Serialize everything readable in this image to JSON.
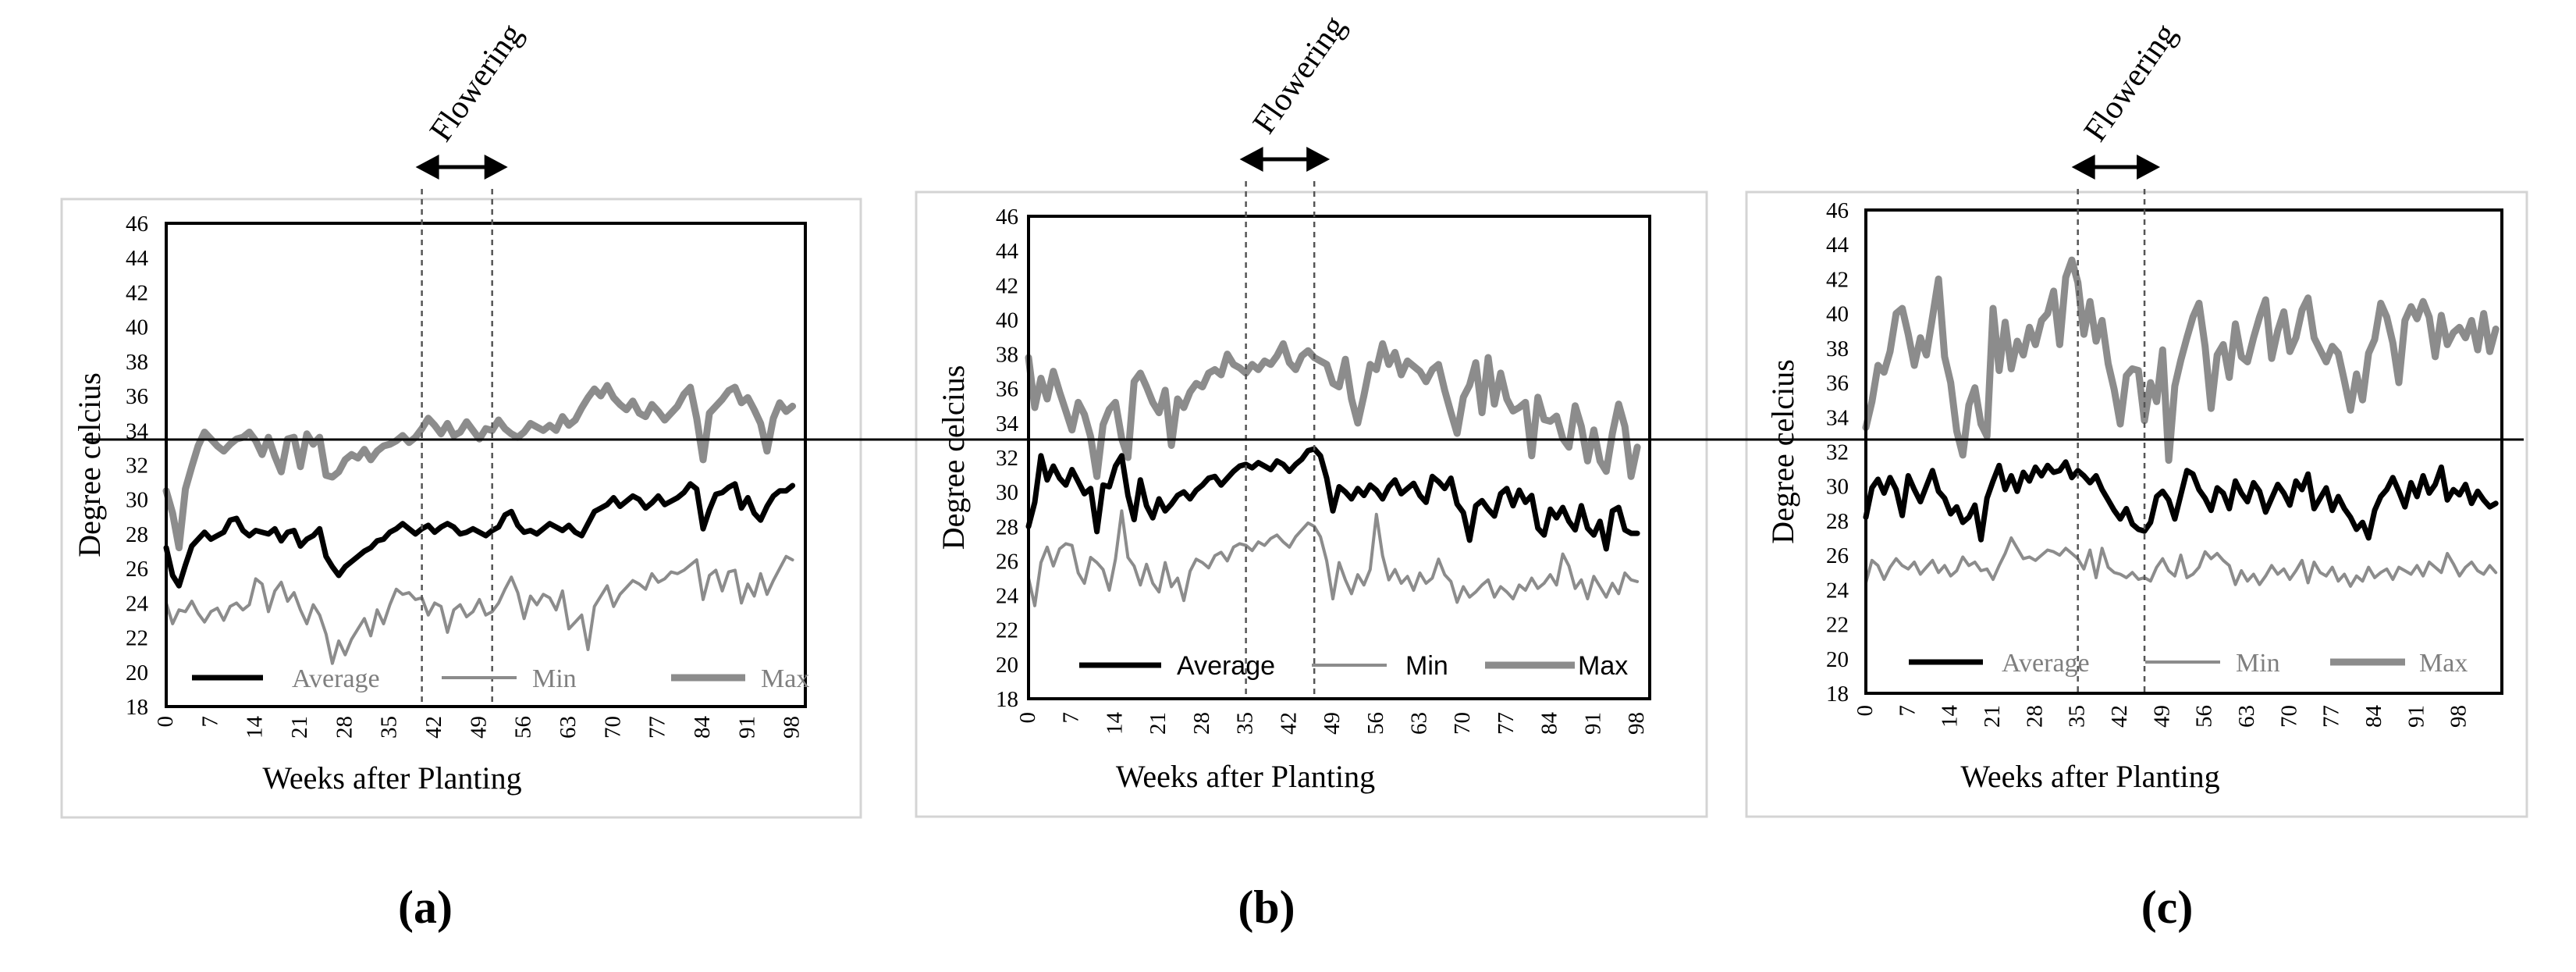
{
  "colors": {
    "average": "#000000",
    "min": "#8c8c8c",
    "max": "#8c8c8c",
    "legend_serif": "#7f7f7f"
  },
  "chart_data": [
    {
      "type": "line",
      "panel_label": "(a)",
      "xlabel": "Weeks after Planting",
      "ylabel": "Degree celcius",
      "ylim": [
        18,
        46
      ],
      "yticks": [
        "18",
        "20",
        "22",
        "24",
        "26",
        "28",
        "30",
        "32",
        "34",
        "36",
        "38",
        "40",
        "42",
        "44",
        "46"
      ],
      "xlim": [
        0,
        100
      ],
      "xticks": [
        "0",
        "7",
        "14",
        "21",
        "28",
        "35",
        "42",
        "49",
        "56",
        "63",
        "70",
        "77",
        "84",
        "91",
        "98"
      ],
      "legend_position": "bottom-inside",
      "legend_font": "serif",
      "flowering": {
        "label": "Flowering",
        "start_week": 40,
        "end_week": 51
      },
      "series": [
        {
          "name": "Average",
          "values": [
            27.2,
            25.6,
            25.0,
            26.2,
            27.3,
            27.7,
            28.1,
            27.7,
            27.9,
            28.1,
            28.8,
            28.9,
            28.2,
            27.9,
            28.2,
            28.1,
            28.0,
            28.3,
            27.6,
            28.1,
            28.2,
            27.3,
            27.7,
            27.9,
            28.3,
            26.7,
            26.1,
            25.6,
            26.1,
            26.4,
            26.7,
            27.0,
            27.2,
            27.6,
            27.7,
            28.1,
            28.3,
            28.6,
            28.3,
            28.0,
            28.3,
            28.5,
            28.1,
            28.4,
            28.6,
            28.4,
            28.0,
            28.1,
            28.3,
            28.1,
            27.9,
            28.2,
            28.4,
            29.1,
            29.3,
            28.5,
            28.1,
            28.2,
            28.0,
            28.3,
            28.6,
            28.4,
            28.2,
            28.5,
            28.1,
            27.9,
            28.6,
            29.3,
            29.5,
            29.7,
            30.1,
            29.6,
            29.9,
            30.2,
            30.0,
            29.5,
            29.8,
            30.2,
            29.7,
            29.9,
            30.1,
            30.4,
            30.9,
            30.6,
            28.3,
            29.4,
            30.3,
            30.4,
            30.7,
            30.9,
            29.5,
            30.1,
            29.2,
            28.8,
            29.6,
            30.2,
            30.5,
            30.5,
            30.8
          ]
        },
        {
          "name": "Min",
          "values": [
            24.0,
            22.8,
            23.6,
            23.5,
            24.1,
            23.4,
            22.9,
            23.5,
            23.7,
            23.0,
            23.8,
            24.0,
            23.6,
            23.9,
            25.4,
            25.1,
            23.5,
            24.7,
            25.2,
            24.1,
            24.6,
            23.6,
            22.8,
            23.9,
            23.3,
            22.2,
            20.5,
            21.8,
            21.0,
            21.9,
            22.5,
            23.1,
            22.1,
            23.6,
            22.8,
            23.9,
            24.8,
            24.5,
            24.6,
            24.2,
            24.3,
            23.3,
            24.0,
            23.8,
            22.3,
            23.6,
            23.9,
            23.2,
            23.5,
            24.2,
            23.3,
            23.5,
            24.0,
            24.8,
            25.5,
            24.6,
            23.1,
            24.4,
            23.9,
            24.5,
            24.3,
            23.6,
            24.7,
            22.5,
            22.9,
            23.3,
            21.3,
            23.8,
            24.4,
            25.0,
            23.8,
            24.5,
            24.9,
            25.3,
            25.1,
            24.8,
            25.7,
            25.2,
            25.4,
            25.8,
            25.7,
            25.9,
            26.2,
            26.5,
            24.2,
            25.6,
            25.9,
            24.7,
            25.8,
            25.9,
            24.0,
            25.1,
            24.4,
            25.7,
            24.5,
            25.3,
            26.0,
            26.7,
            26.5
          ]
        },
        {
          "name": "Max",
          "values": [
            30.5,
            29.2,
            27.2,
            30.6,
            31.9,
            33.1,
            33.9,
            33.5,
            33.1,
            32.8,
            33.2,
            33.5,
            33.6,
            33.9,
            33.4,
            32.6,
            33.6,
            32.5,
            31.6,
            33.5,
            33.6,
            31.9,
            33.8,
            33.2,
            33.6,
            31.4,
            31.3,
            31.6,
            32.3,
            32.6,
            32.4,
            32.9,
            32.3,
            32.8,
            33.1,
            33.2,
            33.4,
            33.7,
            33.3,
            33.6,
            34.1,
            34.7,
            34.3,
            33.8,
            34.4,
            33.7,
            33.9,
            34.5,
            34.0,
            33.5,
            34.1,
            34.0,
            34.6,
            34.1,
            33.8,
            33.6,
            33.9,
            34.4,
            34.2,
            34.0,
            34.3,
            34.0,
            34.8,
            34.3,
            34.6,
            35.3,
            35.9,
            36.4,
            36.0,
            36.6,
            35.9,
            35.5,
            35.2,
            35.7,
            35.0,
            34.8,
            35.5,
            35.1,
            34.6,
            35.0,
            35.4,
            36.1,
            36.5,
            34.7,
            32.3,
            35.0,
            35.4,
            35.8,
            36.3,
            36.5,
            35.6,
            35.9,
            35.2,
            34.4,
            32.8,
            34.7,
            35.6,
            35.1,
            35.4
          ]
        }
      ]
    },
    {
      "type": "line",
      "panel_label": "(b)",
      "xlabel": "Weeks after Planting",
      "ylabel": "Degree celcius",
      "ylim": [
        18,
        46
      ],
      "yticks": [
        "18",
        "20",
        "22",
        "24",
        "26",
        "28",
        "30",
        "32",
        "34",
        "36",
        "38",
        "40",
        "42",
        "44",
        "46"
      ],
      "xlim": [
        0,
        100
      ],
      "xticks": [
        "0",
        "7",
        "14",
        "21",
        "28",
        "35",
        "42",
        "49",
        "56",
        "63",
        "70",
        "77",
        "84",
        "91",
        "98"
      ],
      "legend_position": "bottom-inside",
      "legend_font": "sans",
      "flowering": {
        "label": "Flowering",
        "start_week": 35,
        "end_week": 46
      },
      "series": [
        {
          "name": "Average",
          "values": [
            28.0,
            29.4,
            32.1,
            30.7,
            31.5,
            30.8,
            30.4,
            31.3,
            30.6,
            29.9,
            30.2,
            27.7,
            30.4,
            30.3,
            31.5,
            32.1,
            29.8,
            28.4,
            30.7,
            29.2,
            28.5,
            29.6,
            28.9,
            29.3,
            29.8,
            30.0,
            29.6,
            30.1,
            30.4,
            30.8,
            30.9,
            30.4,
            30.8,
            31.2,
            31.5,
            31.6,
            31.4,
            31.7,
            31.5,
            31.3,
            31.8,
            31.6,
            31.2,
            31.6,
            31.9,
            32.4,
            32.5,
            32.1,
            30.8,
            28.9,
            30.3,
            30.0,
            29.6,
            30.2,
            29.8,
            30.4,
            30.1,
            29.6,
            30.3,
            30.7,
            29.9,
            30.2,
            30.5,
            29.8,
            29.4,
            30.9,
            30.6,
            30.2,
            30.8,
            29.3,
            28.8,
            27.2,
            29.2,
            29.5,
            29.0,
            28.6,
            29.9,
            30.2,
            29.2,
            30.1,
            29.4,
            29.8,
            27.9,
            27.5,
            29.0,
            28.5,
            29.1,
            28.3,
            27.8,
            29.2,
            27.9,
            27.5,
            28.3,
            26.7,
            28.9,
            29.1,
            27.8,
            27.6,
            27.6
          ]
        },
        {
          "name": "Min",
          "values": [
            25.0,
            23.4,
            25.9,
            26.8,
            25.7,
            26.7,
            27.0,
            26.9,
            25.3,
            24.7,
            26.2,
            25.9,
            25.5,
            24.3,
            26.1,
            28.9,
            26.2,
            25.7,
            24.6,
            25.8,
            24.7,
            24.2,
            25.9,
            24.5,
            25.0,
            23.7,
            25.4,
            26.1,
            25.9,
            25.6,
            26.3,
            26.5,
            26.0,
            26.8,
            27.0,
            26.9,
            26.6,
            27.1,
            26.9,
            27.3,
            27.5,
            27.1,
            26.8,
            27.4,
            27.8,
            28.2,
            28.0,
            27.4,
            26.0,
            23.8,
            25.9,
            24.9,
            24.1,
            25.2,
            24.6,
            25.5,
            28.7,
            26.3,
            24.9,
            25.5,
            24.7,
            25.1,
            24.3,
            25.3,
            24.7,
            25.0,
            26.1,
            25.2,
            24.8,
            23.6,
            24.5,
            23.9,
            24.2,
            24.6,
            24.9,
            23.9,
            24.5,
            24.2,
            23.8,
            24.6,
            24.3,
            25.0,
            24.4,
            24.7,
            25.2,
            24.6,
            26.4,
            25.7,
            24.4,
            24.9,
            23.8,
            25.1,
            24.5,
            23.9,
            24.7,
            24.1,
            25.3,
            24.9,
            24.8
          ]
        },
        {
          "name": "Max",
          "values": [
            37.8,
            34.9,
            36.6,
            35.4,
            37.0,
            35.8,
            34.7,
            33.6,
            35.2,
            34.5,
            33.2,
            30.9,
            33.9,
            34.8,
            35.2,
            33.1,
            32.0,
            36.4,
            36.9,
            36.1,
            35.2,
            34.6,
            35.9,
            32.7,
            35.4,
            34.9,
            35.8,
            36.3,
            36.1,
            36.9,
            37.1,
            36.8,
            38.0,
            37.4,
            37.2,
            36.9,
            37.4,
            37.1,
            37.6,
            37.4,
            37.9,
            38.6,
            37.5,
            37.1,
            37.9,
            38.2,
            37.8,
            37.6,
            37.4,
            36.3,
            36.1,
            37.7,
            35.4,
            34.0,
            35.6,
            37.4,
            37.1,
            38.6,
            37.4,
            38.1,
            36.8,
            37.6,
            37.3,
            37.0,
            36.4,
            37.1,
            37.4,
            35.9,
            34.6,
            33.4,
            35.5,
            36.2,
            37.5,
            34.6,
            37.8,
            35.1,
            36.9,
            35.4,
            34.7,
            34.9,
            35.2,
            32.1,
            35.5,
            34.2,
            34.1,
            34.4,
            33.1,
            32.6,
            35.0,
            33.8,
            31.8,
            33.6,
            31.8,
            31.2,
            33.4,
            35.1,
            33.8,
            30.9,
            32.6
          ]
        }
      ]
    },
    {
      "type": "line",
      "panel_label": "(c)",
      "xlabel": "Weeks after Planting",
      "ylabel": "Degree celcius",
      "ylim": [
        18,
        46
      ],
      "yticks": [
        "18",
        "20",
        "22",
        "24",
        "26",
        "28",
        "30",
        "32",
        "34",
        "36",
        "38",
        "40",
        "42",
        "44",
        "46"
      ],
      "xlim": [
        0,
        105
      ],
      "xticks": [
        "0",
        "7",
        "14",
        "21",
        "28",
        "35",
        "42",
        "49",
        "56",
        "63",
        "70",
        "77",
        "84",
        "91",
        "98"
      ],
      "legend_position": "bottom-inside",
      "legend_font": "serif",
      "flowering": {
        "label": "Flowering",
        "start_week": 35,
        "end_week": 46
      },
      "series": [
        {
          "name": "Average",
          "values": [
            28.2,
            29.9,
            30.4,
            29.6,
            30.5,
            29.8,
            28.3,
            30.6,
            29.8,
            29.1,
            30.0,
            30.9,
            29.7,
            29.3,
            28.4,
            28.8,
            27.9,
            28.2,
            28.9,
            26.9,
            29.3,
            30.3,
            31.2,
            29.8,
            30.6,
            29.7,
            30.8,
            30.3,
            31.1,
            30.6,
            31.2,
            30.8,
            30.9,
            31.4,
            30.5,
            30.9,
            30.6,
            30.2,
            30.6,
            29.8,
            29.2,
            28.6,
            28.1,
            28.7,
            27.8,
            27.5,
            27.4,
            27.9,
            29.4,
            29.7,
            29.2,
            28.1,
            29.5,
            30.9,
            30.7,
            29.8,
            29.3,
            28.6,
            29.9,
            29.6,
            28.7,
            30.3,
            29.6,
            29.1,
            30.2,
            29.7,
            28.5,
            29.3,
            30.1,
            29.6,
            28.9,
            30.3,
            29.8,
            30.7,
            28.7,
            29.3,
            29.9,
            28.6,
            29.4,
            28.7,
            28.2,
            27.5,
            27.9,
            27.0,
            28.6,
            29.4,
            29.8,
            30.5,
            29.7,
            28.8,
            30.2,
            29.4,
            30.6,
            29.6,
            30.1,
            31.1,
            29.2,
            29.8,
            29.5,
            30.1,
            29.0,
            29.7,
            29.2,
            28.8,
            29.0
          ]
        },
        {
          "name": "Min",
          "values": [
            24.4,
            25.7,
            25.4,
            24.6,
            25.3,
            25.8,
            25.4,
            25.2,
            25.6,
            24.9,
            25.3,
            25.7,
            25.0,
            25.4,
            24.8,
            25.1,
            25.9,
            25.4,
            25.6,
            25.1,
            25.2,
            24.6,
            25.4,
            26.1,
            27.0,
            26.4,
            25.8,
            25.9,
            25.7,
            26.0,
            26.3,
            26.2,
            26.0,
            26.4,
            26.1,
            25.8,
            25.2,
            26.3,
            24.7,
            26.4,
            25.3,
            25.0,
            24.9,
            24.7,
            25.0,
            24.6,
            24.7,
            24.5,
            25.3,
            25.8,
            25.1,
            24.8,
            26.0,
            24.7,
            24.9,
            25.3,
            26.2,
            25.8,
            26.1,
            25.7,
            25.4,
            24.3,
            25.1,
            24.5,
            24.9,
            24.3,
            24.8,
            25.4,
            24.9,
            25.2,
            24.6,
            25.1,
            25.7,
            24.4,
            25.6,
            25.0,
            24.8,
            25.3,
            24.5,
            24.9,
            24.2,
            24.8,
            24.5,
            25.3,
            24.7,
            25.0,
            25.2,
            24.6,
            25.3,
            25.1,
            24.9,
            25.4,
            24.8,
            25.6,
            25.3,
            25.0,
            26.1,
            25.5,
            24.8,
            25.3,
            25.6,
            25.1,
            24.9,
            25.4,
            25.0
          ]
        },
        {
          "name": "Max",
          "values": [
            33.4,
            34.9,
            37.0,
            36.6,
            37.8,
            40.0,
            40.3,
            38.8,
            37.0,
            38.6,
            37.6,
            39.8,
            42.0,
            37.5,
            36.0,
            33.2,
            31.8,
            34.7,
            35.7,
            33.6,
            32.9,
            40.3,
            36.7,
            39.5,
            36.8,
            38.4,
            37.6,
            39.2,
            38.2,
            39.6,
            40.0,
            41.3,
            38.2,
            42.1,
            43.1,
            41.8,
            38.8,
            40.7,
            38.4,
            39.6,
            37.1,
            35.6,
            33.6,
            36.4,
            36.8,
            36.7,
            33.8,
            36.0,
            34.9,
            37.9,
            31.5,
            35.8,
            37.3,
            38.6,
            39.8,
            40.6,
            38.1,
            34.5,
            37.6,
            38.2,
            36.3,
            39.4,
            37.5,
            37.2,
            38.6,
            39.8,
            40.8,
            37.4,
            39.0,
            40.1,
            37.8,
            38.6,
            40.2,
            40.9,
            38.6,
            37.9,
            37.2,
            38.1,
            37.7,
            36.1,
            34.4,
            36.5,
            35.0,
            37.7,
            38.5,
            40.6,
            39.8,
            38.3,
            36.0,
            39.6,
            40.4,
            39.7,
            40.7,
            39.8,
            37.5,
            39.9,
            38.2,
            38.9,
            39.2,
            38.6,
            39.6,
            37.9,
            40.0,
            37.8,
            39.1
          ]
        }
      ]
    }
  ]
}
